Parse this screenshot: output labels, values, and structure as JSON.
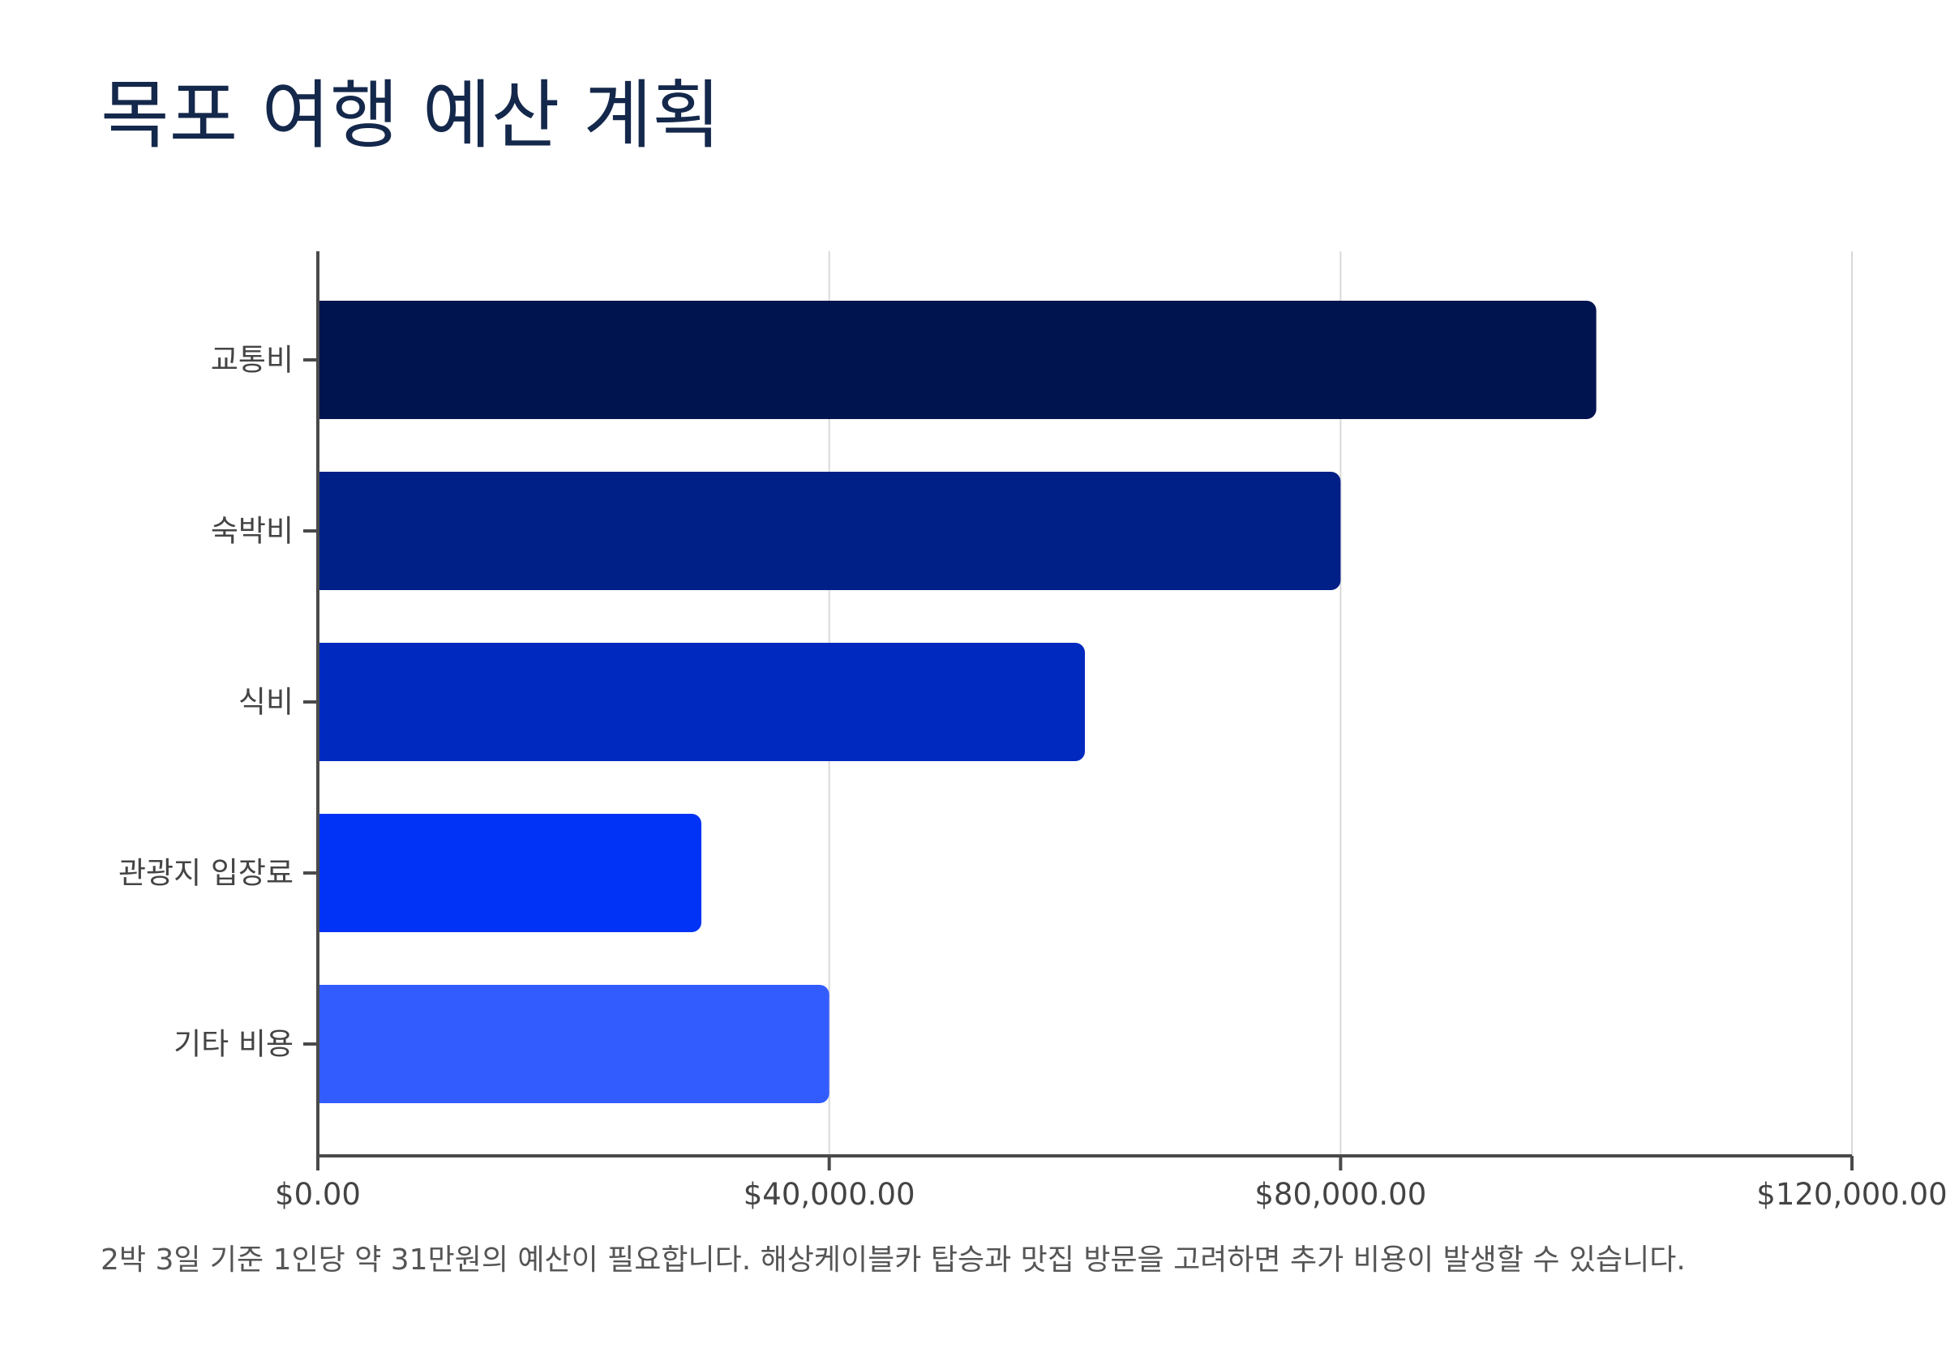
{
  "chart_data": {
    "type": "bar",
    "orientation": "horizontal",
    "title": "목포 여행 예산 계획",
    "categories": [
      "교통비",
      "숙박비",
      "식비",
      "관광지 입장료",
      "기타 비용"
    ],
    "values": [
      100000,
      80000,
      60000,
      30000,
      40000
    ],
    "colors": [
      "#00144f",
      "#001f87",
      "#0029bf",
      "#0033f5",
      "#335cff"
    ],
    "xlim": [
      0,
      120000
    ],
    "xticks": [
      0,
      40000,
      80000,
      120000
    ],
    "xtick_labels": [
      "$0.00",
      "$40,000.00",
      "$80,000.00",
      "$120,000.00"
    ],
    "xlabel": "",
    "ylabel": "",
    "grid": "vertical",
    "legend": "none",
    "note": "2박 3일 기준 1인당 약 31만원의 예산이 필요합니다. 해상케이블카 탑승과 맛집 방문을 고려하면 추가 비용이 발생할 수 있습니다."
  }
}
